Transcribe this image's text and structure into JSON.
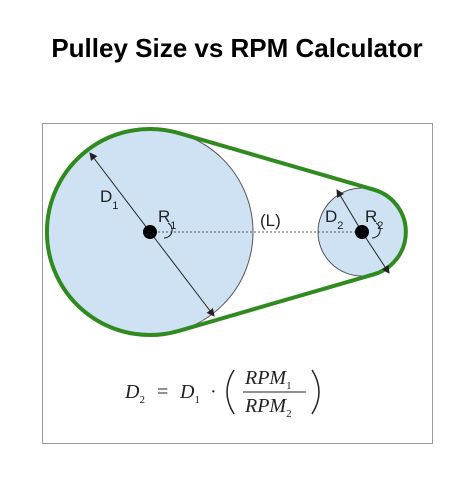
{
  "header": {
    "title": "Pulley Size vs RPM Calculator"
  },
  "labels": {
    "d1": {
      "main": "D",
      "sub": "1"
    },
    "r1": {
      "main": "R",
      "sub": "1"
    },
    "length": "(L)",
    "d2": {
      "main": "D",
      "sub": "2"
    },
    "r2": {
      "main": "R",
      "sub": "2"
    }
  },
  "formula": {
    "lhs": "D",
    "lhs_sub": "2",
    "equals": "=",
    "rhs": "D",
    "rhs_sub": "1",
    "dot": "·",
    "numerator": "RPM",
    "numerator_sub": "1",
    "denominator": "RPM",
    "denominator_sub": "2"
  }
}
